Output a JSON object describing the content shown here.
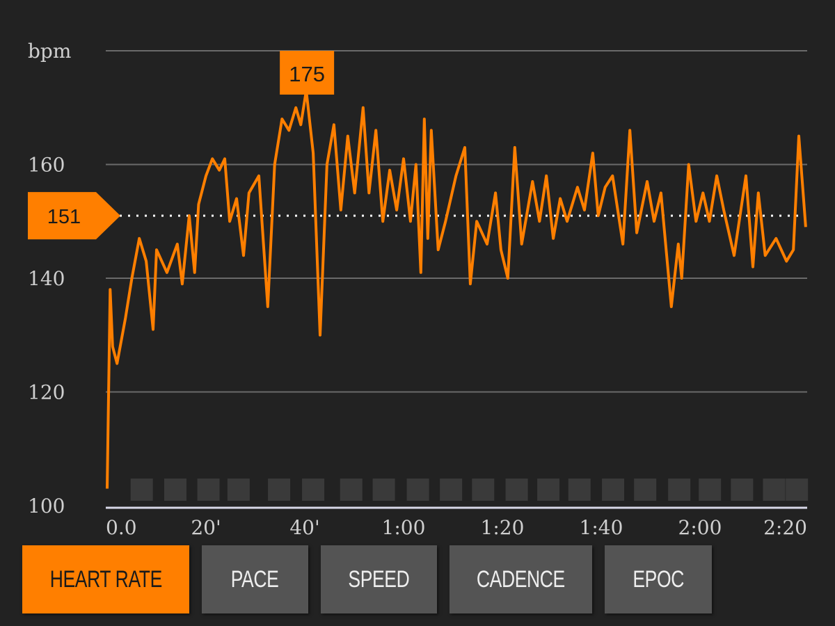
{
  "chart_data": {
    "type": "line",
    "ylabel": "bpm",
    "ylim": [
      100,
      180
    ],
    "xlim": [
      0,
      141.4
    ],
    "yticks": [
      {
        "v": 100,
        "label": "100"
      },
      {
        "v": 120,
        "label": "120"
      },
      {
        "v": 140,
        "label": "140"
      },
      {
        "v": 160,
        "label": "160"
      },
      {
        "v": 180,
        "label": "bpm"
      }
    ],
    "xticks": [
      {
        "v": 0,
        "label": "0.0"
      },
      {
        "v": 20,
        "label": "20'"
      },
      {
        "v": 40,
        "label": "40'"
      },
      {
        "v": 60,
        "label": "1:00"
      },
      {
        "v": 80,
        "label": "1:20"
      },
      {
        "v": 100,
        "label": "1:40"
      },
      {
        "v": 120,
        "label": "2:00"
      },
      {
        "v": 140,
        "label": "2:20"
      }
    ],
    "grid": true,
    "line_color": "#ff7f00",
    "average": {
      "value": 151,
      "label": "151"
    },
    "max": {
      "value": 175,
      "label": "175",
      "x": 40.3
    },
    "lap_markers": [
      7,
      13.8,
      20.5,
      26.6,
      34.8,
      41.7,
      49.4,
      56,
      62.9,
      69.6,
      76.1,
      82.9,
      89.3,
      95.6,
      102.4,
      108.9,
      115.8,
      122,
      128.5,
      135,
      139.6
    ],
    "x": [
      0,
      0.6,
      1.1,
      2,
      3.7,
      5,
      6.5,
      7.9,
      9.3,
      10,
      12.1,
      14.2,
      15.2,
      16.6,
      17.7,
      18.5,
      20,
      21.3,
      22.7,
      23.8,
      24.8,
      26.2,
      27.6,
      28.7,
      30.7,
      32.5,
      33.9,
      35.4,
      36.8,
      38.2,
      39.2,
      40.3,
      41.7,
      43.1,
      44.5,
      45.9,
      47.3,
      48.7,
      50.1,
      51.8,
      53,
      54.4,
      55.8,
      57.2,
      58.6,
      60,
      61.4,
      62.5,
      63.5,
      64.2,
      64.9,
      65.6,
      67,
      68.5,
      70.6,
      72.4,
      73.5,
      74.8,
      76.9,
      78.6,
      79.7,
      81.1,
      82.5,
      83.9,
      86.1,
      87.5,
      88.9,
      90.3,
      91.7,
      93.1,
      95.2,
      96.6,
      98.3,
      99.4,
      100.8,
      102.3,
      104.4,
      105.8,
      107.2,
      109.3,
      110.7,
      112.1,
      114.2,
      115.6,
      116.3,
      117.7,
      119.2,
      120.6,
      121.9,
      123.4,
      124.8,
      126.9,
      129.3,
      130.7,
      131.8,
      133.2,
      135.4,
      137.5,
      138.9,
      140,
      141.4
    ],
    "y": [
      103,
      138,
      128,
      125,
      133,
      140,
      147,
      143,
      131,
      145,
      141,
      146,
      139,
      151,
      141,
      153,
      158,
      161,
      159,
      161,
      150,
      154,
      144,
      155,
      158,
      135,
      160,
      168,
      166,
      170,
      167,
      173,
      162,
      130,
      160,
      167,
      152,
      165,
      155,
      170,
      155,
      166,
      150,
      159,
      152,
      161,
      150,
      160,
      141,
      168,
      147,
      166,
      145,
      150,
      158,
      163,
      139,
      150,
      146,
      155,
      145,
      140,
      163,
      146,
      157,
      150,
      158,
      147,
      154,
      150,
      156,
      152,
      162,
      151,
      156,
      158,
      146,
      166,
      148,
      157,
      150,
      155,
      135,
      146,
      140,
      160,
      150,
      155,
      150,
      158,
      152,
      144,
      158,
      142,
      155,
      144,
      147,
      143,
      145,
      165,
      149
    ]
  },
  "tabs": [
    {
      "label": "HEART RATE",
      "active": true
    },
    {
      "label": "PACE",
      "active": false
    },
    {
      "label": "SPEED",
      "active": false
    },
    {
      "label": "CADENCE",
      "active": false
    },
    {
      "label": "EPOC",
      "active": false
    }
  ]
}
